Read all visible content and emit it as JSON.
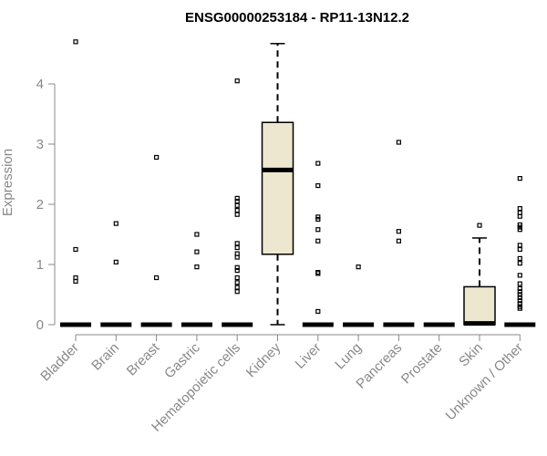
{
  "chart_data": {
    "type": "boxplot",
    "title": "ENSG00000253184 - RP11-13N12.2",
    "xlabel": "",
    "ylabel": "Expression",
    "ylim": [
      0,
      4.75
    ],
    "yticks": [
      0,
      1,
      2,
      3,
      4
    ],
    "box_fill": "#ede7cf",
    "categories": [
      "Bladder",
      "Brain",
      "Breast",
      "Gastric",
      "Hematopoietic cells",
      "Kidney",
      "Liver",
      "Lung",
      "Pancreas",
      "Prostate",
      "Skin",
      "Unknown / Other"
    ],
    "boxes": [
      {
        "category": "Bladder",
        "q1": 0,
        "median": 0,
        "q3": 0,
        "whisker_low": 0,
        "whisker_high": 0,
        "outliers": [
          4.7,
          1.25,
          0.78,
          0.72
        ]
      },
      {
        "category": "Brain",
        "q1": 0,
        "median": 0,
        "q3": 0,
        "whisker_low": 0,
        "whisker_high": 0,
        "outliers": [
          1.68,
          1.04
        ]
      },
      {
        "category": "Breast",
        "q1": 0,
        "median": 0,
        "q3": 0,
        "whisker_low": 0,
        "whisker_high": 0,
        "outliers": [
          2.78,
          0.78
        ]
      },
      {
        "category": "Gastric",
        "q1": 0,
        "median": 0,
        "q3": 0,
        "whisker_low": 0,
        "whisker_high": 0,
        "outliers": [
          1.5,
          1.21,
          0.96
        ]
      },
      {
        "category": "Hematopoietic cells",
        "q1": 0,
        "median": 0,
        "q3": 0,
        "whisker_low": 0,
        "whisker_high": 0,
        "outliers": [
          4.05,
          2.1,
          2.05,
          1.98,
          1.9,
          1.83,
          1.35,
          1.28,
          1.18,
          1.12,
          0.95,
          0.9,
          0.78,
          0.7,
          0.62,
          0.55
        ]
      },
      {
        "category": "Kidney",
        "q1": 1.17,
        "median": 2.57,
        "q3": 3.36,
        "whisker_low": 0,
        "whisker_high": 4.67,
        "outliers": []
      },
      {
        "category": "Liver",
        "q1": 0,
        "median": 0,
        "q3": 0,
        "whisker_low": 0,
        "whisker_high": 0,
        "outliers": [
          2.68,
          2.31,
          1.79,
          1.75,
          1.58,
          1.39,
          0.87,
          0.85,
          0.22
        ]
      },
      {
        "category": "Lung",
        "q1": 0,
        "median": 0,
        "q3": 0,
        "whisker_low": 0,
        "whisker_high": 0,
        "outliers": [
          0.96
        ]
      },
      {
        "category": "Pancreas",
        "q1": 0,
        "median": 0,
        "q3": 0,
        "whisker_low": 0,
        "whisker_high": 0,
        "outliers": [
          3.03,
          1.55,
          1.39
        ]
      },
      {
        "category": "Prostate",
        "q1": 0,
        "median": 0,
        "q3": 0,
        "whisker_low": 0,
        "whisker_high": 0,
        "outliers": []
      },
      {
        "category": "Skin",
        "q1": 0,
        "median": 0.02,
        "q3": 0.63,
        "whisker_low": 0,
        "whisker_high": 1.44,
        "outliers": [
          1.65
        ]
      },
      {
        "category": "Unknown / Other",
        "q1": 0,
        "median": 0,
        "q3": 0,
        "whisker_low": 0,
        "whisker_high": 0,
        "outliers": [
          2.43,
          1.93,
          1.86,
          1.8,
          1.66,
          1.62,
          1.58,
          1.32,
          1.25,
          1.1,
          1.02,
          0.82,
          0.68,
          0.6,
          0.55,
          0.5,
          0.45,
          0.4,
          0.35,
          0.3,
          0.27
        ]
      }
    ]
  }
}
